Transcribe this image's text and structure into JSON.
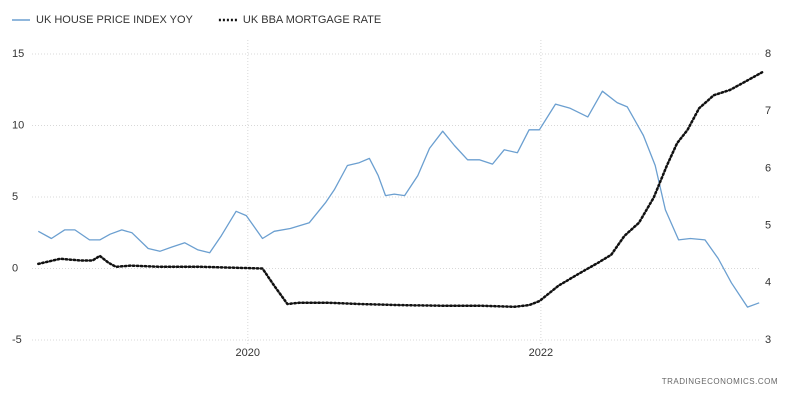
{
  "chart_data": {
    "type": "line",
    "source": "TRADINGECONOMICS.COM",
    "xlim": [
      2018.5,
      2023.55
    ],
    "xticks": [
      2020,
      2022
    ],
    "ylim": [
      -5,
      15
    ],
    "yticks": [
      -5,
      0,
      5,
      10,
      15
    ],
    "y2lim": [
      3,
      8
    ],
    "y2ticks": [
      3,
      4,
      5,
      6,
      7,
      8
    ],
    "grid": true,
    "series": [
      {
        "name": "UK HOUSE PRICE INDEX YOY",
        "color": "#6b9fd0",
        "style": "solid",
        "x": [
          2018.57,
          2018.66,
          2018.75,
          2018.82,
          2018.92,
          2018.99,
          2019.06,
          2019.14,
          2019.21,
          2019.32,
          2019.4,
          2019.48,
          2019.57,
          2019.66,
          2019.74,
          2019.82,
          2019.92,
          2019.99,
          2020.1,
          2020.18,
          2020.29,
          2020.42,
          2020.53,
          2020.59,
          2020.68,
          2020.76,
          2020.83,
          2020.89,
          2020.94,
          2021.0,
          2021.07,
          2021.16,
          2021.24,
          2021.33,
          2021.41,
          2021.5,
          2021.58,
          2021.67,
          2021.75,
          2021.84,
          2021.92,
          2021.99,
          2022.1,
          2022.2,
          2022.32,
          2022.42,
          2022.52,
          2022.59,
          2022.7,
          2022.78,
          2022.85,
          2022.94,
          2023.02,
          2023.12,
          2023.21,
          2023.3,
          2023.41,
          2023.49
        ],
        "values": [
          2.6,
          2.1,
          2.7,
          2.7,
          2.0,
          2.0,
          2.4,
          2.7,
          2.5,
          1.4,
          1.2,
          1.5,
          1.8,
          1.3,
          1.1,
          2.3,
          4.0,
          3.7,
          2.1,
          2.6,
          2.8,
          3.2,
          4.6,
          5.5,
          7.2,
          7.4,
          7.7,
          6.5,
          5.1,
          5.2,
          5.1,
          6.5,
          8.4,
          9.6,
          8.6,
          7.6,
          7.6,
          7.3,
          8.3,
          8.1,
          9.7,
          9.7,
          11.5,
          11.2,
          10.6,
          12.4,
          11.6,
          11.3,
          9.3,
          7.2,
          4.1,
          2.0,
          2.1,
          2.0,
          0.7,
          -1.0,
          -2.7,
          -2.4
        ]
      },
      {
        "name": "UK BBA MORTGAGE RATE",
        "color": "#111111",
        "style": "dotted",
        "axis": "y2",
        "x": [
          2018.57,
          2018.72,
          2018.86,
          2018.94,
          2018.99,
          2019.05,
          2019.1,
          2019.2,
          2019.4,
          2019.68,
          2019.95,
          2020.1,
          2020.18,
          2020.27,
          2020.35,
          2020.56,
          2020.76,
          2021.04,
          2021.31,
          2021.58,
          2021.82,
          2021.92,
          2021.99,
          2022.12,
          2022.26,
          2022.39,
          2022.48,
          2022.57,
          2022.67,
          2022.77,
          2022.86,
          2022.93,
          2023.0,
          2023.08,
          2023.18,
          2023.29,
          2023.39,
          2023.51
        ],
        "values": [
          4.33,
          4.42,
          4.39,
          4.39,
          4.47,
          4.35,
          4.28,
          4.3,
          4.28,
          4.28,
          4.26,
          4.25,
          3.95,
          3.63,
          3.65,
          3.65,
          3.63,
          3.61,
          3.6,
          3.6,
          3.58,
          3.61,
          3.68,
          3.95,
          4.16,
          4.35,
          4.49,
          4.82,
          5.05,
          5.49,
          6.05,
          6.44,
          6.67,
          7.05,
          7.28,
          7.37,
          7.51,
          7.68
        ]
      }
    ]
  }
}
